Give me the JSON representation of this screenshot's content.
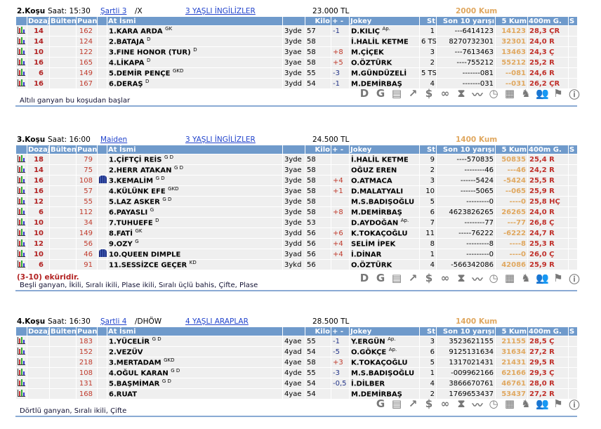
{
  "columns": [
    "",
    "Dozaj",
    "Bülten",
    "Puan",
    "",
    "At İsmi",
    "",
    "Kilo",
    "+ -",
    "Jokey",
    "St",
    "Son 10 yarışı",
    "5 Kum",
    "400m G.",
    "S"
  ],
  "colors": {
    "header_bg": "#6f9acb",
    "dozaj": "#b22222",
    "five_kum": "#e0a860",
    "m400": "#c0302a",
    "link": "#2244cc"
  },
  "races": [
    {
      "no": "2.Koşu",
      "time": "Saat: 15:30",
      "condition": "Şartli  3",
      "extra": "/X",
      "class": "3 YAŞLI İNGİLİZLER",
      "prize": "23.000 TL",
      "distance": "2000 Kum",
      "rows": [
        [
          "14",
          "",
          "162",
          "",
          "1.KARA ARDA",
          "GK",
          "3yde",
          "57",
          "-1",
          "D.KILIÇ",
          "Ap.",
          "1",
          "---6414123",
          "14123",
          "28,3 ÇR"
        ],
        [
          "14",
          "",
          "124",
          "",
          "2.BATAJA",
          "D",
          "3yde",
          "58",
          "",
          "İ.HALİL KETME",
          "",
          "6 TS",
          "8270732301",
          "32301",
          "24,0 R"
        ],
        [
          "10",
          "",
          "122",
          "",
          "3.FINE HONOR (TUR)",
          "D",
          "3yae",
          "58",
          "+8",
          "M.ÇİÇEK",
          "",
          "3",
          "---7613463",
          "13463",
          "24,3 Ç"
        ],
        [
          "16",
          "",
          "165",
          "",
          "4.LİKAPA",
          "D",
          "3yae",
          "58",
          "+5",
          "O.ÖZTÜRK",
          "",
          "2",
          "----755212",
          "55212",
          "25,2 R"
        ],
        [
          "6",
          "",
          "149",
          "",
          "5.DEMİR PENÇE",
          "GKD",
          "3yde",
          "55",
          "-3",
          "M.GÜNDÜZELİ",
          "",
          "5 TS",
          "-------081",
          "--081",
          "24,6 R"
        ],
        [
          "16",
          "",
          "167",
          "",
          "6.DERAŞ",
          "D",
          "3ydd",
          "54",
          "-1",
          "M.DEMİRBAŞ",
          "",
          "4",
          "-------031",
          "--031",
          "26,2 ÇR"
        ]
      ],
      "tools": [
        "D",
        "G",
        "calc-sheet",
        "trend",
        "dollar",
        "binoculars",
        "hourglass",
        "graph",
        "stopwatch",
        "calculator",
        "horse",
        "people",
        "flag",
        "info"
      ],
      "ekuri": "",
      "footer": "Altılı ganyan bu koşudan başlar"
    },
    {
      "no": "3.Koşu",
      "time": "Saat: 16:00",
      "condition": "Maiden ",
      "extra": "",
      "class": "3 YAŞLI İNGİLİZLER",
      "prize": "24.500 TL",
      "distance": "1400 Kum",
      "rows": [
        [
          "18",
          "",
          "79",
          "",
          "1.ÇİFTÇİ REİS",
          "G D",
          "3yde",
          "58",
          "",
          "İ.HALİL KETME",
          "",
          "9",
          "----570835",
          "50835",
          "25,4 R"
        ],
        [
          "14",
          "",
          "75",
          "",
          "2.HERR ATAKAN",
          "G D",
          "3yae",
          "58",
          "",
          "OĞUZ EREN",
          "",
          "2",
          "--------46",
          "---46",
          "24,2 R"
        ],
        [
          "16",
          "",
          "108",
          "jersey",
          "3.KEMALİM",
          "G D",
          "3yde",
          "58",
          "+4",
          "O.ATMACA",
          "",
          "3",
          "------5424",
          "-5424",
          "25,5 R"
        ],
        [
          "16",
          "",
          "57",
          "",
          "4.KÜLÜNK EFE",
          "GKD",
          "3yae",
          "58",
          "+1",
          "D.MALATYALI",
          "",
          "10",
          "------5065",
          "--065",
          "25,9 R"
        ],
        [
          "12",
          "",
          "55",
          "",
          "5.LAZ ASKER",
          "G D",
          "3yde",
          "58",
          "",
          "M.S.BADIŞOĞLU",
          "",
          "5",
          "---------0",
          "----0",
          "25,8 HÇ"
        ],
        [
          "6",
          "",
          "112",
          "",
          "6.PAYASLI",
          "G",
          "3yde",
          "58",
          "+8",
          "M.DEMİRBAŞ",
          "",
          "6",
          "4623826265",
          "26265",
          "24,0 R"
        ],
        [
          "10",
          "",
          "34",
          "",
          "7.TUHUEFE",
          "D",
          "3yde",
          "53",
          "",
          "D.AYDOĞAN",
          "Ap.",
          "7",
          "--------77",
          "---77",
          "26,8 Ç"
        ],
        [
          "10",
          "",
          "149",
          "",
          "8.FATİ",
          "GK",
          "3ydd",
          "56",
          "+6",
          "K.TOKAÇOĞLU",
          "",
          "11",
          "-----76222",
          "-6222",
          "24,7 R"
        ],
        [
          "12",
          "",
          "56",
          "",
          "9.OZY",
          "G",
          "3ydd",
          "56",
          "+4",
          "SELİM İPEK",
          "",
          "8",
          "---------8",
          "----8",
          "25,3 R"
        ],
        [
          "10",
          "",
          "46",
          "jersey",
          "10.QUEEN DIMPLE",
          "",
          "3yad",
          "56",
          "+4",
          "İ.DİNAR",
          "",
          "1",
          "---------0",
          "----0",
          "26,0 Ç"
        ],
        [
          "6",
          "",
          "91",
          "",
          "11.SESSİZCE GEÇER",
          "KD",
          "3ykd",
          "56",
          "",
          "O.ÖZTÜRK",
          "",
          "4",
          "-566342086",
          "42086",
          "25,9 R"
        ]
      ],
      "tools": [
        "D",
        "G",
        "calc-sheet",
        "trend",
        "dollar",
        "binoculars",
        "hourglass",
        "graph",
        "stopwatch",
        "calculator",
        "horse",
        "people",
        "flag",
        "info"
      ],
      "ekuri": "(3-10) eküridir.",
      "footer": "Beşli ganyan, İkili, Sıralı ikili, Plase ikili, Sıralı üçlü bahis, Çifte, Plase"
    },
    {
      "no": "4.Koşu",
      "time": "Saat: 16:30",
      "condition": "Şartli  4",
      "extra": "/DHÖW",
      "class": "4 YAŞLI ARAPLAR",
      "prize": "28.500 TL",
      "distance": "1400 Kum",
      "rows": [
        [
          "",
          "",
          "183",
          "",
          "1.YÜCELİR",
          "G D",
          "4yae",
          "55",
          "-1",
          "Y.ERGÜN",
          "Ap.",
          "3",
          "3523621155",
          "21155",
          "28,5 Ç"
        ],
        [
          "",
          "",
          "152",
          "",
          "2.VEZÜV",
          "",
          "4yad",
          "54",
          "-5",
          "O.GÖKÇE",
          "Ap.",
          "6",
          "9125131634",
          "31634",
          "27,2 R"
        ],
        [
          "",
          "",
          "218",
          "",
          "3.MERTADAM",
          "GKD",
          "4yae",
          "58",
          "+3",
          "K.TOKAÇOĞLU",
          "",
          "5",
          "1317021431",
          "21431",
          "29,5 R"
        ],
        [
          "",
          "",
          "108",
          "",
          "4.OĞUL KARAN",
          "G D",
          "4yde",
          "55",
          "-3",
          "M.S.BADIŞOĞLU",
          "",
          "1",
          "-009962166",
          "62166",
          "29,3 Ç"
        ],
        [
          "",
          "",
          "131",
          "",
          "5.BAŞMİMAR",
          "G D",
          "4yae",
          "54",
          "-0,5",
          "İ.DİLBER",
          "",
          "4",
          "3866670761",
          "46761",
          "28,0 R"
        ],
        [
          "",
          "",
          "168",
          "",
          "6.RUAT",
          "",
          "4yae",
          "54",
          "",
          "M.DEMİRBAŞ",
          "",
          "2",
          "1769653437",
          "53437",
          "27,2 R"
        ]
      ],
      "tools": [
        "G",
        "calc-sheet",
        "trend",
        "dollar",
        "binoculars",
        "hourglass",
        "graph",
        "stopwatch",
        "calculator",
        "horse",
        "people",
        "flag",
        "info"
      ],
      "ekuri": "",
      "footer": "Dörtlü ganyan, Sıralı ikili, Çifte"
    }
  ]
}
